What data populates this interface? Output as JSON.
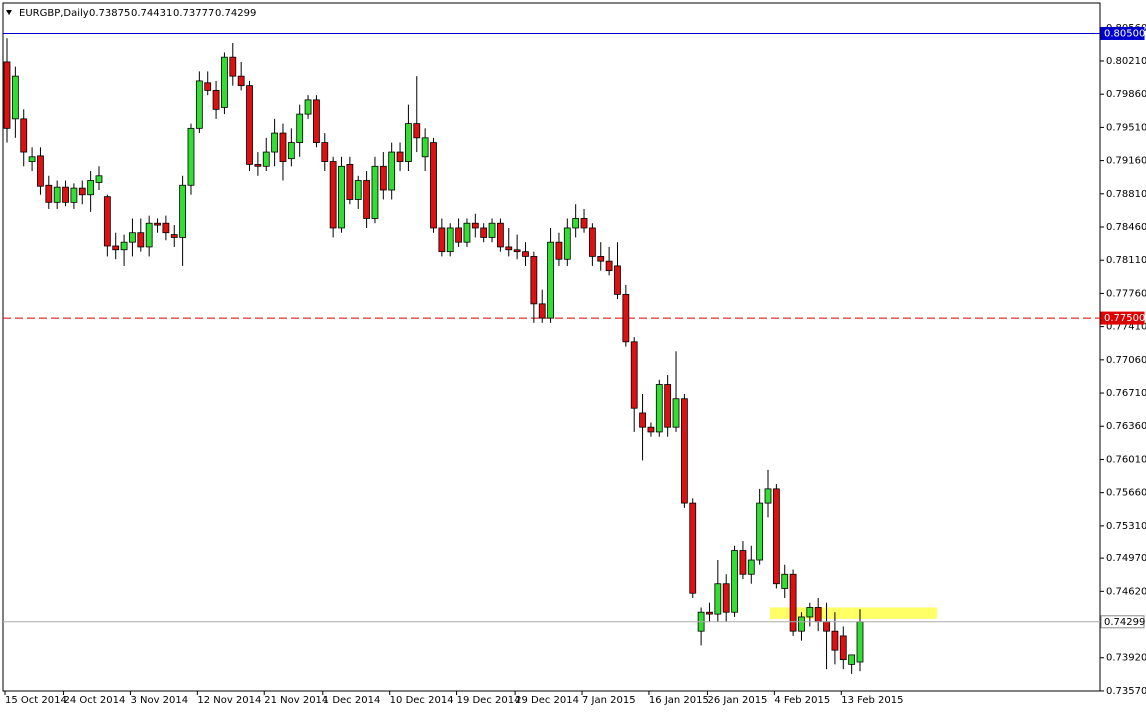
{
  "chart_data": {
    "type": "candlestick",
    "title": "EURGBP,Daily",
    "categories": [
      "15 Oct 2014",
      null,
      null,
      null,
      null,
      null,
      null,
      "24 Oct 2014",
      null,
      null,
      null,
      null,
      null,
      null,
      null,
      "3 Nov 2014",
      null,
      null,
      null,
      null,
      null,
      null,
      null,
      "12 Nov 2014",
      null,
      null,
      null,
      null,
      null,
      null,
      null,
      "21 Nov 2014",
      null,
      null,
      null,
      null,
      null,
      null,
      "1 Dec 2014",
      null,
      null,
      null,
      null,
      null,
      null,
      null,
      "10 Dec 2014",
      null,
      null,
      null,
      null,
      null,
      null,
      null,
      "19 Dec 2014",
      null,
      null,
      null,
      null,
      null,
      null,
      "29 Dec 2014",
      null,
      null,
      null,
      null,
      null,
      null,
      null,
      "7 Jan 2015",
      null,
      null,
      null,
      null,
      null,
      null,
      null,
      "16 Jan 2015",
      null,
      null,
      null,
      null,
      null,
      null,
      "26 Jan 2015",
      null,
      null,
      null,
      null,
      null,
      null,
      null,
      "4 Feb 2015",
      null,
      null,
      null,
      null,
      null,
      null,
      null,
      "13 Feb 2015",
      null,
      null
    ],
    "open": [
      0.802,
      0.796,
      0.796,
      0.7915,
      0.7921,
      0.789,
      0.7872,
      0.7888,
      0.7872,
      0.7887,
      0.788,
      0.7893,
      0.7878,
      0.7826,
      0.7822,
      0.783,
      0.784,
      0.7825,
      0.785,
      0.785,
      0.7838,
      0.7835,
      0.789,
      0.795,
      0.7998,
      0.799,
      0.7972,
      0.8025,
      0.8005,
      0.7995,
      0.7912,
      0.791,
      0.7925,
      0.7945,
      0.7918,
      0.7935,
      0.7965,
      0.798,
      0.7935,
      0.7915,
      0.7845,
      0.7912,
      0.7875,
      0.7895,
      0.7855,
      0.791,
      0.7885,
      0.7925,
      0.7915,
      0.7955,
      0.792,
      0.7935,
      0.7845,
      0.782,
      0.7845,
      0.783,
      0.785,
      0.7845,
      0.7835,
      0.785,
      0.7825,
      0.7822,
      0.782,
      0.7815,
      0.7765,
      0.775,
      0.783,
      0.7812,
      0.7845,
      0.7855,
      0.7845,
      0.7815,
      0.781,
      0.7805,
      0.7775,
      0.7725,
      0.765,
      0.7635,
      0.763,
      0.768,
      0.7635,
      0.7665,
      0.7555,
      0.742,
      0.744,
      0.7438,
      0.747,
      0.744,
      0.7505,
      0.748,
      0.7495,
      0.7555,
      0.757,
      0.7465,
      0.748,
      0.742,
      0.7435,
      0.7445,
      0.743,
      0.742,
      0.7415,
      0.7385,
      0.73875
    ],
    "high": [
      0.8045,
      0.8015,
      0.797,
      0.793,
      0.793,
      0.79,
      0.7895,
      0.7895,
      0.7892,
      0.7895,
      0.7905,
      0.791,
      0.788,
      0.784,
      0.7838,
      0.7855,
      0.7855,
      0.7858,
      0.7855,
      0.7858,
      0.7848,
      0.79,
      0.7955,
      0.801,
      0.801,
      0.8,
      0.803,
      0.804,
      0.802,
      0.8,
      0.7925,
      0.794,
      0.796,
      0.7955,
      0.795,
      0.7975,
      0.7985,
      0.7985,
      0.7945,
      0.792,
      0.792,
      0.792,
      0.79,
      0.7905,
      0.792,
      0.7925,
      0.7935,
      0.7935,
      0.7975,
      0.8005,
      0.795,
      0.794,
      0.7855,
      0.785,
      0.7855,
      0.7855,
      0.786,
      0.785,
      0.7855,
      0.7855,
      0.7845,
      0.7838,
      0.783,
      0.782,
      0.778,
      0.7845,
      0.784,
      0.7855,
      0.787,
      0.7865,
      0.785,
      0.783,
      0.7825,
      0.783,
      0.7785,
      0.773,
      0.767,
      0.764,
      0.7685,
      0.769,
      0.7715,
      0.767,
      0.756,
      0.7445,
      0.745,
      0.7495,
      0.748,
      0.751,
      0.7515,
      0.751,
      0.757,
      0.759,
      0.7575,
      0.749,
      0.7485,
      0.744,
      0.745,
      0.7455,
      0.745,
      0.744,
      0.7425,
      0.7395,
      0.74431
    ],
    "low": [
      0.7935,
      0.794,
      0.791,
      0.7905,
      0.788,
      0.7865,
      0.7865,
      0.7868,
      0.7865,
      0.787,
      0.7862,
      0.7885,
      0.7815,
      0.7812,
      0.7805,
      0.7815,
      0.782,
      0.7815,
      0.784,
      0.7832,
      0.7825,
      0.7805,
      0.788,
      0.7945,
      0.7985,
      0.796,
      0.7965,
      0.7995,
      0.799,
      0.7905,
      0.79,
      0.7905,
      0.791,
      0.7895,
      0.791,
      0.792,
      0.796,
      0.793,
      0.7905,
      0.7835,
      0.784,
      0.787,
      0.7865,
      0.7845,
      0.785,
      0.7875,
      0.7875,
      0.7905,
      0.7905,
      0.7925,
      0.7905,
      0.784,
      0.7815,
      0.7815,
      0.7825,
      0.7825,
      0.7835,
      0.783,
      0.783,
      0.782,
      0.7815,
      0.7812,
      0.7805,
      0.7745,
      0.7745,
      0.7745,
      0.7805,
      0.7805,
      0.7835,
      0.784,
      0.7805,
      0.78,
      0.7795,
      0.777,
      0.772,
      0.763,
      0.76,
      0.7625,
      0.7625,
      0.7625,
      0.763,
      0.755,
      0.7455,
      0.7405,
      0.743,
      0.743,
      0.743,
      0.7435,
      0.7475,
      0.747,
      0.749,
      0.754,
      0.7465,
      0.7455,
      0.7415,
      0.741,
      0.7425,
      0.742,
      0.738,
      0.7385,
      0.738,
      0.7375,
      0.73777
    ],
    "close": [
      0.795,
      0.8005,
      0.7925,
      0.792,
      0.7889,
      0.7872,
      0.7888,
      0.7872,
      0.7887,
      0.788,
      0.7895,
      0.79,
      0.7826,
      0.7822,
      0.783,
      0.784,
      0.7825,
      0.785,
      0.7848,
      0.784,
      0.7835,
      0.789,
      0.795,
      0.8,
      0.799,
      0.797,
      0.8025,
      0.8005,
      0.7995,
      0.7912,
      0.791,
      0.7925,
      0.7945,
      0.7915,
      0.7935,
      0.7965,
      0.798,
      0.7935,
      0.7915,
      0.7845,
      0.791,
      0.7875,
      0.7895,
      0.7855,
      0.791,
      0.7885,
      0.7925,
      0.7915,
      0.7955,
      0.794,
      0.794,
      0.7845,
      0.782,
      0.7845,
      0.783,
      0.785,
      0.7845,
      0.7835,
      0.785,
      0.7825,
      0.7822,
      0.782,
      0.7815,
      0.7765,
      0.775,
      0.783,
      0.7812,
      0.7845,
      0.7855,
      0.7845,
      0.7815,
      0.781,
      0.78,
      0.7775,
      0.7725,
      0.7655,
      0.7635,
      0.763,
      0.768,
      0.7635,
      0.7665,
      0.7555,
      0.746,
      0.744,
      0.7438,
      0.747,
      0.744,
      0.7505,
      0.748,
      0.7495,
      0.7555,
      0.757,
      0.747,
      0.748,
      0.742,
      0.7435,
      0.7445,
      0.743,
      0.742,
      0.74,
      0.739,
      0.7395,
      0.74299
    ],
    "up_color": "#33dd33",
    "down_color": "#dd1111",
    "ylim": [
      0.7358,
      0.808
    ],
    "yticks": [
      {
        "value": 0.8056,
        "label": "0.80560"
      },
      {
        "value": 0.8021,
        "label": "0.80210"
      },
      {
        "value": 0.7986,
        "label": "0.79860"
      },
      {
        "value": 0.7951,
        "label": "0.79510"
      },
      {
        "value": 0.7916,
        "label": "0.79160"
      },
      {
        "value": 0.7881,
        "label": "0.78810"
      },
      {
        "value": 0.7846,
        "label": "0.78460"
      },
      {
        "value": 0.7811,
        "label": "0.78110"
      },
      {
        "value": 0.7776,
        "label": "0.77760"
      },
      {
        "value": 0.7741,
        "label": "0.77410"
      },
      {
        "value": 0.7706,
        "label": "0.77060"
      },
      {
        "value": 0.7671,
        "label": "0.76710"
      },
      {
        "value": 0.7636,
        "label": "0.76360"
      },
      {
        "value": 0.7601,
        "label": "0.76010"
      },
      {
        "value": 0.7566,
        "label": "0.75660"
      },
      {
        "value": 0.7531,
        "label": "0.75310"
      },
      {
        "value": 0.7497,
        "label": "0.74970"
      },
      {
        "value": 0.7462,
        "label": "0.74620"
      },
      {
        "value": 0.7392,
        "label": "0.73920"
      },
      {
        "value": 0.7357,
        "label": "0.73570"
      }
    ],
    "levels": [
      {
        "value": 0.805,
        "label": "0.80500",
        "color": "#0000cc",
        "dashed": false
      },
      {
        "value": 0.775,
        "label": "0.77500",
        "color": "#dd0000",
        "dashed": true
      }
    ],
    "zone": {
      "ylim": [
        0.7433,
        0.7445
      ],
      "color": "#ffff66"
    }
  }
}
